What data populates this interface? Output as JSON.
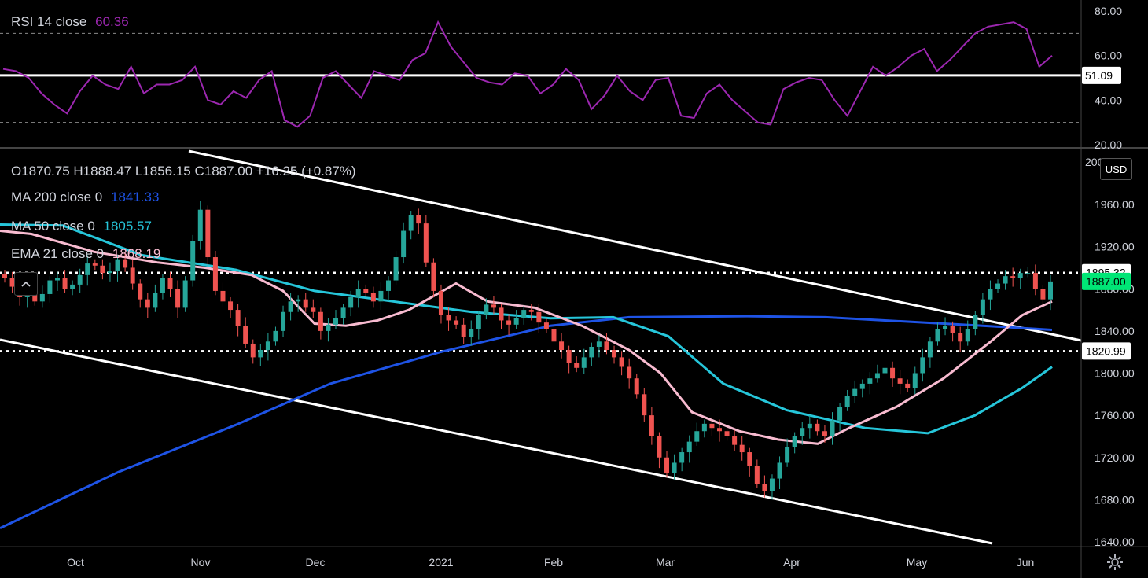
{
  "rsi_panel": {
    "label": "RSI 14 close",
    "value": "60.36",
    "value_color": "#9c27b0",
    "y_ticks": [
      "80.00",
      "60.00",
      "40.00",
      "20.00"
    ],
    "level_label": "51.09"
  },
  "price_panel": {
    "ohlc": "O1870.75 H1888.47 L1856.15 C1887.00 +16.25 (+0.87%)",
    "ma200_label": "MA 200 close 0",
    "ma200_value": "1841.33",
    "ma50_label": "MA 50 close 0",
    "ma50_value": "1805.57",
    "ema21_label": "EMA 21 close 0",
    "ema21_value": "1868.19",
    "currency": "USD",
    "y_ticks": [
      "1960.00",
      "1920.00",
      "1880.00",
      "1840.00",
      "1800.00",
      "1760.00",
      "1720.00",
      "1680.00",
      "1640.00"
    ],
    "top_tick_partial": "2000.00",
    "resistance_label": "1895.32",
    "support_label": "1820.99",
    "last_price_label": "1887.00",
    "colors": {
      "up": "#26a69a",
      "down": "#ef5350",
      "ma200": "#1e53e5",
      "ma50": "#26c6da",
      "ema21": "#f8bbd0",
      "rsi": "#9c27b0",
      "last": "#00e676"
    }
  },
  "x_axis": [
    "Oct",
    "Nov",
    "Dec",
    "2021",
    "Feb",
    "Mar",
    "Apr",
    "May",
    "Jun"
  ],
  "chart_data": [
    {
      "type": "line",
      "title": "RSI 14 close",
      "series": [
        {
          "name": "RSI 14 close",
          "values": [
            54,
            53,
            50,
            43,
            38,
            34,
            44,
            51,
            47,
            45,
            55,
            43,
            47,
            47,
            49,
            55,
            40,
            38,
            44,
            41,
            49,
            53,
            31,
            28,
            33,
            50,
            53,
            47,
            41,
            53,
            51,
            49,
            58,
            61,
            75,
            64,
            57,
            50,
            48,
            47,
            52,
            51,
            43,
            47,
            54,
            49,
            36,
            42,
            51,
            44,
            40,
            49,
            50,
            33,
            32,
            43,
            47,
            40,
            35,
            30,
            29,
            45,
            48,
            50,
            49,
            40,
            33,
            44,
            55,
            51,
            55,
            60,
            63,
            53,
            58,
            64,
            70,
            73,
            74,
            75,
            72,
            55,
            60
          ]
        }
      ],
      "ylim": [
        20,
        80
      ],
      "reference_lines": [
        30,
        51.09,
        70
      ]
    },
    {
      "type": "candlestick",
      "title": "",
      "x_labels": [
        "Oct",
        "Nov",
        "Dec",
        "2021",
        "Feb",
        "Mar",
        "Apr",
        "May",
        "Jun"
      ],
      "candles_close": [
        1890,
        1882,
        1872,
        1876,
        1868,
        1875,
        1888,
        1890,
        1880,
        1884,
        1893,
        1904,
        1902,
        1895,
        1897,
        1908,
        1900,
        1885,
        1870,
        1862,
        1876,
        1890,
        1880,
        1862,
        1888,
        1925,
        1955,
        1910,
        1878,
        1868,
        1860,
        1845,
        1828,
        1815,
        1822,
        1830,
        1840,
        1858,
        1868,
        1870,
        1862,
        1858,
        1840,
        1846,
        1852,
        1862,
        1872,
        1880,
        1876,
        1868,
        1878,
        1888,
        1910,
        1935,
        1950,
        1942,
        1905,
        1878,
        1855,
        1850,
        1846,
        1834,
        1842,
        1855,
        1865,
        1862,
        1850,
        1846,
        1852,
        1860,
        1858,
        1848,
        1842,
        1830,
        1822,
        1810,
        1805,
        1815,
        1825,
        1830,
        1822,
        1815,
        1806,
        1795,
        1780,
        1760,
        1740,
        1720,
        1705,
        1715,
        1725,
        1735,
        1745,
        1752,
        1748,
        1745,
        1740,
        1732,
        1725,
        1712,
        1695,
        1688,
        1700,
        1715,
        1730,
        1740,
        1748,
        1752,
        1745,
        1740,
        1755,
        1768,
        1778,
        1785,
        1790,
        1795,
        1800,
        1805,
        1795,
        1790,
        1786,
        1800,
        1815,
        1830,
        1842,
        1845,
        1838,
        1830,
        1842,
        1855,
        1870,
        1880,
        1885,
        1892,
        1890,
        1895,
        1895,
        1880,
        1870,
        1887
      ],
      "ylim": [
        1640,
        2000
      ],
      "moving_averages": {
        "MA 200 close 0": 1841.33,
        "MA 50 close 0": 1805.57,
        "EMA 21 close 0": 1868.19
      },
      "levels": [
        1895.32,
        1820.99
      ],
      "last": 1887.0
    }
  ]
}
